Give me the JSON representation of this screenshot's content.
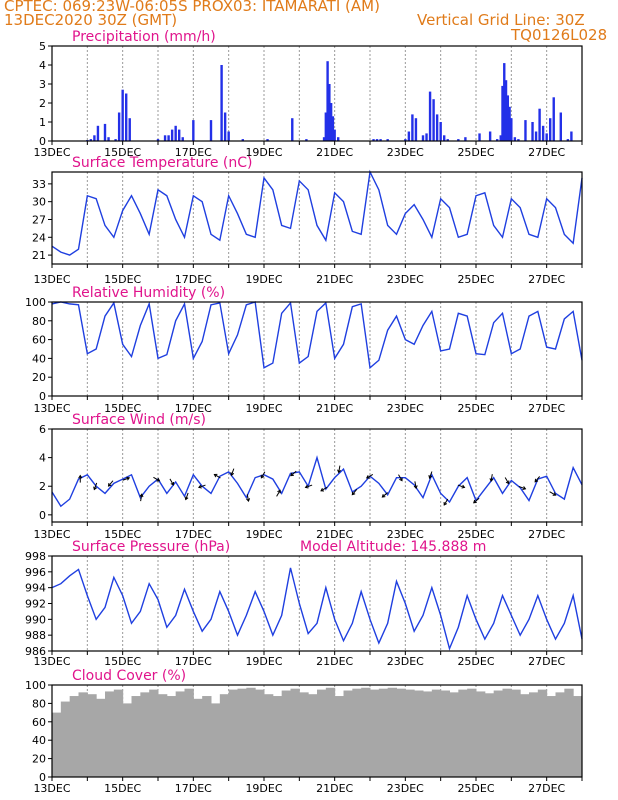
{
  "header": {
    "line1": "CPTEC:   069:23W-06:05S   PROX03: ITAMARATI (AM)",
    "line2_left": "13DEC2020 30Z (GMT)",
    "line2_right": "Vertical Grid Line: 30Z",
    "line3_right": "TQ0126L028"
  },
  "colors": {
    "line": "#1f3fe0",
    "bars": "#2330e8",
    "cloud": "#a7a7a7",
    "title": "#e0148c",
    "header": "#e07b1a"
  },
  "chart_data": [
    {
      "type": "bar",
      "title": "Precipitation (mm/h)",
      "ylim": [
        0,
        5
      ],
      "yticks": [
        0,
        1,
        2,
        3,
        4,
        5
      ],
      "xtick_labels": [
        "13DEC",
        "15DEC",
        "17DEC",
        "19DEC",
        "21DEC",
        "23DEC",
        "25DEC",
        "27DEC"
      ],
      "x_range_days": [
        13,
        28
      ],
      "x": [
        14.0,
        14.1,
        14.2,
        14.3,
        14.5,
        14.6,
        14.8,
        14.9,
        15.0,
        15.1,
        15.2,
        16.0,
        16.2,
        16.3,
        16.4,
        16.5,
        16.6,
        16.7,
        17.0,
        17.5,
        17.8,
        17.9,
        18.0,
        18.4,
        19.1,
        19.8,
        20.2,
        20.7,
        20.75,
        20.8,
        20.85,
        20.9,
        20.95,
        21.0,
        21.1,
        22.1,
        22.2,
        22.3,
        22.5,
        23.0,
        23.1,
        23.2,
        23.3,
        23.5,
        23.6,
        23.7,
        23.8,
        23.9,
        24.0,
        24.1,
        24.2,
        24.5,
        24.7,
        25.1,
        25.4,
        25.6,
        25.7,
        25.75,
        25.8,
        25.85,
        25.9,
        25.95,
        26.0,
        26.1,
        26.2,
        26.4,
        26.6,
        26.7,
        26.8,
        26.9,
        27.0,
        27.1,
        27.2,
        27.4,
        27.6,
        27.7
      ],
      "values": [
        0.05,
        0.1,
        0.3,
        0.8,
        0.9,
        0.2,
        0.1,
        1.5,
        2.7,
        2.5,
        1.2,
        0.1,
        0.3,
        0.3,
        0.6,
        0.8,
        0.6,
        0.2,
        1.1,
        1.1,
        4.0,
        1.5,
        0.5,
        0.1,
        0.1,
        1.2,
        0.1,
        0.2,
        1.5,
        4.2,
        3.0,
        2.0,
        1.3,
        0.6,
        0.2,
        0.1,
        0.1,
        0.1,
        0.1,
        0.1,
        0.5,
        1.4,
        1.2,
        0.3,
        0.4,
        2.6,
        2.2,
        1.4,
        1.0,
        0.3,
        0.1,
        0.1,
        0.2,
        0.4,
        0.5,
        0.1,
        0.3,
        2.9,
        4.1,
        3.2,
        2.4,
        1.8,
        1.2,
        0.2,
        0.1,
        1.1,
        1.0,
        0.5,
        1.7,
        0.8,
        0.4,
        1.2,
        2.3,
        1.5,
        0.1,
        0.5
      ]
    },
    {
      "type": "line",
      "title": "Surface Temperature (nC)",
      "ylim": [
        19.5,
        35
      ],
      "yticks": [
        21,
        24,
        27,
        30,
        33
      ],
      "xtick_labels": [
        "13DEC",
        "15DEC",
        "17DEC",
        "19DEC",
        "21DEC",
        "23DEC",
        "25DEC",
        "27DEC"
      ],
      "x_range_days": [
        13,
        28
      ],
      "x": [
        13.0,
        13.25,
        13.5,
        13.75,
        14.0,
        14.25,
        14.5,
        14.75,
        15.0,
        15.25,
        15.5,
        15.75,
        16.0,
        16.25,
        16.5,
        16.75,
        17.0,
        17.25,
        17.5,
        17.75,
        18.0,
        18.25,
        18.5,
        18.75,
        19.0,
        19.25,
        19.5,
        19.75,
        20.0,
        20.25,
        20.5,
        20.75,
        21.0,
        21.25,
        21.5,
        21.75,
        22.0,
        22.25,
        22.5,
        22.75,
        23.0,
        23.25,
        23.5,
        23.75,
        24.0,
        24.25,
        24.5,
        24.75,
        25.0,
        25.25,
        25.5,
        25.75,
        26.0,
        26.25,
        26.5,
        26.75,
        27.0,
        27.25,
        27.5,
        27.75,
        28.0
      ],
      "values": [
        22.5,
        21.5,
        21.0,
        22.0,
        31.0,
        30.5,
        26.0,
        24.0,
        28.5,
        31.0,
        28.0,
        24.5,
        32.0,
        31.0,
        27.0,
        24.0,
        31.0,
        30.0,
        24.5,
        23.5,
        31.0,
        28.0,
        24.5,
        24.0,
        34.0,
        32.0,
        26.0,
        25.5,
        33.5,
        32.0,
        26.0,
        23.5,
        31.5,
        30.0,
        25.0,
        24.5,
        35.0,
        32.0,
        26.0,
        24.5,
        28.0,
        29.5,
        27.0,
        24.0,
        30.5,
        29.0,
        24.0,
        24.5,
        31.0,
        31.5,
        26.0,
        24.0,
        30.5,
        29.0,
        24.5,
        24.0,
        30.5,
        29.0,
        24.5,
        23.0,
        34.0
      ]
    },
    {
      "type": "line",
      "title": "Relative Humidity (%)",
      "ylim": [
        0,
        100
      ],
      "yticks": [
        0,
        20,
        40,
        60,
        80,
        100
      ],
      "xtick_labels": [
        "13DEC",
        "15DEC",
        "17DEC",
        "19DEC",
        "21DEC",
        "23DEC",
        "25DEC",
        "27DEC"
      ],
      "x_range_days": [
        13,
        28
      ],
      "x": [
        13.0,
        13.25,
        13.5,
        13.75,
        14.0,
        14.25,
        14.5,
        14.75,
        15.0,
        15.25,
        15.5,
        15.75,
        16.0,
        16.25,
        16.5,
        16.75,
        17.0,
        17.25,
        17.5,
        17.75,
        18.0,
        18.25,
        18.5,
        18.75,
        19.0,
        19.25,
        19.5,
        19.75,
        20.0,
        20.25,
        20.5,
        20.75,
        21.0,
        21.25,
        21.5,
        21.75,
        22.0,
        22.25,
        22.5,
        22.75,
        23.0,
        23.25,
        23.5,
        23.75,
        24.0,
        24.25,
        24.5,
        24.75,
        25.0,
        25.25,
        25.5,
        25.75,
        26.0,
        26.25,
        26.5,
        26.75,
        27.0,
        27.25,
        27.5,
        27.75,
        28.0
      ],
      "values": [
        98,
        100,
        98,
        97,
        45,
        50,
        85,
        99,
        55,
        42,
        75,
        98,
        40,
        44,
        80,
        98,
        40,
        58,
        97,
        99,
        45,
        65,
        97,
        100,
        30,
        35,
        88,
        99,
        35,
        42,
        90,
        99,
        40,
        55,
        95,
        98,
        30,
        38,
        70,
        85,
        60,
        55,
        75,
        90,
        48,
        50,
        88,
        85,
        45,
        44,
        78,
        88,
        45,
        50,
        85,
        90,
        52,
        50,
        82,
        90,
        38
      ]
    },
    {
      "type": "line",
      "title": "Surface Wind (m/s)",
      "ylim": [
        -0.5,
        6
      ],
      "yticks": [
        0,
        2,
        4,
        6
      ],
      "xtick_labels": [
        "13DEC",
        "15DEC",
        "17DEC",
        "19DEC",
        "21DEC",
        "23DEC",
        "25DEC",
        "27DEC"
      ],
      "x_range_days": [
        13,
        28
      ],
      "x": [
        13.0,
        13.25,
        13.5,
        13.75,
        14.0,
        14.25,
        14.5,
        14.75,
        15.0,
        15.25,
        15.5,
        15.75,
        16.0,
        16.25,
        16.5,
        16.75,
        17.0,
        17.25,
        17.5,
        17.75,
        18.0,
        18.25,
        18.5,
        18.75,
        19.0,
        19.25,
        19.5,
        19.75,
        20.0,
        20.25,
        20.5,
        20.75,
        21.0,
        21.25,
        21.5,
        21.75,
        22.0,
        22.25,
        22.5,
        22.75,
        23.0,
        23.25,
        23.5,
        23.75,
        24.0,
        24.25,
        24.5,
        24.75,
        25.0,
        25.25,
        25.5,
        25.75,
        26.0,
        26.25,
        26.5,
        26.75,
        27.0,
        27.25,
        27.5,
        27.75,
        28.0
      ],
      "values": [
        1.6,
        0.6,
        1.1,
        2.5,
        2.8,
        2.0,
        1.5,
        2.2,
        2.5,
        2.8,
        1.2,
        2.0,
        2.5,
        1.5,
        2.3,
        1.3,
        2.8,
        2.0,
        1.5,
        2.7,
        3.0,
        2.2,
        1.2,
        2.6,
        2.8,
        2.5,
        1.5,
        2.9,
        3.0,
        2.0,
        4.0,
        1.8,
        2.6,
        3.2,
        1.6,
        2.0,
        2.7,
        2.2,
        1.4,
        2.6,
        2.6,
        2.1,
        1.2,
        2.8,
        1.5,
        0.9,
        2.0,
        2.6,
        1.0,
        1.8,
        2.6,
        1.5,
        2.4,
        1.9,
        1.0,
        2.5,
        2.7,
        1.5,
        1.1,
        3.3,
        2.1
      ],
      "arrow_dirs_deg": [
        90,
        250,
        230,
        20,
        80,
        330,
        300,
        250,
        200,
        150,
        250,
        280,
        240,
        60,
        220,
        200,
        210,
        260,
        230,
        210,
        220,
        300,
        280,
        250,
        240,
        340,
        220,
        260,
        300,
        340,
        230,
        330
      ]
    },
    {
      "type": "line",
      "title": "Surface Pressure (hPa)",
      "annotation": "Model Altitude: 145.888  m",
      "ylim": [
        986,
        998
      ],
      "yticks": [
        986,
        988,
        990,
        992,
        994,
        996,
        998
      ],
      "xtick_labels": [
        "13DEC",
        "15DEC",
        "17DEC",
        "19DEC",
        "21DEC",
        "23DEC",
        "25DEC",
        "27DEC"
      ],
      "x_range_days": [
        13,
        28
      ],
      "x": [
        13.0,
        13.25,
        13.5,
        13.75,
        14.0,
        14.25,
        14.5,
        14.75,
        15.0,
        15.25,
        15.5,
        15.75,
        16.0,
        16.25,
        16.5,
        16.75,
        17.0,
        17.25,
        17.5,
        17.75,
        18.0,
        18.25,
        18.5,
        18.75,
        19.0,
        19.25,
        19.5,
        19.75,
        20.0,
        20.25,
        20.5,
        20.75,
        21.0,
        21.25,
        21.5,
        21.75,
        22.0,
        22.25,
        22.5,
        22.75,
        23.0,
        23.25,
        23.5,
        23.75,
        24.0,
        24.25,
        24.5,
        24.75,
        25.0,
        25.25,
        25.5,
        25.75,
        26.0,
        26.25,
        26.5,
        26.75,
        27.0,
        27.25,
        27.5,
        27.75,
        28.0
      ],
      "values": [
        994.0,
        994.5,
        995.5,
        996.3,
        993.0,
        990.0,
        991.5,
        995.3,
        993.0,
        989.5,
        991.0,
        994.5,
        992.5,
        989.0,
        990.5,
        993.8,
        991.0,
        988.5,
        990.0,
        993.5,
        991.0,
        988.0,
        990.5,
        993.5,
        991.0,
        988.0,
        990.5,
        996.5,
        992.0,
        988.2,
        989.5,
        994.0,
        990.0,
        987.3,
        989.5,
        993.5,
        990.0,
        987.0,
        989.5,
        994.8,
        992.0,
        988.5,
        990.5,
        994.0,
        990.5,
        986.3,
        989.0,
        993.0,
        990.0,
        987.5,
        989.5,
        993.0,
        990.5,
        988.0,
        990.0,
        993.0,
        990.0,
        987.5,
        989.5,
        993.0,
        987.5
      ]
    },
    {
      "type": "bar",
      "title": "Cloud Cover (%)",
      "ylim": [
        0,
        100
      ],
      "yticks": [
        0,
        20,
        40,
        60,
        80,
        100
      ],
      "xtick_labels": [
        "13DEC",
        "15DEC",
        "17DEC",
        "19DEC",
        "21DEC",
        "23DEC",
        "25DEC",
        "27DEC"
      ],
      "x_range_days": [
        13,
        28
      ],
      "x": [
        13.0,
        13.25,
        13.5,
        13.75,
        14.0,
        14.25,
        14.5,
        14.75,
        15.0,
        15.25,
        15.5,
        15.75,
        16.0,
        16.25,
        16.5,
        16.75,
        17.0,
        17.25,
        17.5,
        17.75,
        18.0,
        18.25,
        18.5,
        18.75,
        19.0,
        19.25,
        19.5,
        19.75,
        20.0,
        20.25,
        20.5,
        20.75,
        21.0,
        21.25,
        21.5,
        21.75,
        22.0,
        22.25,
        22.5,
        22.75,
        23.0,
        23.25,
        23.5,
        23.75,
        24.0,
        24.25,
        24.5,
        24.75,
        25.0,
        25.25,
        25.5,
        25.75,
        26.0,
        26.25,
        26.5,
        26.75,
        27.0,
        27.25,
        27.5,
        27.75
      ],
      "values": [
        70,
        82,
        88,
        92,
        90,
        85,
        93,
        95,
        80,
        88,
        92,
        95,
        90,
        88,
        93,
        96,
        85,
        88,
        80,
        90,
        95,
        96,
        97,
        95,
        90,
        88,
        94,
        96,
        92,
        90,
        95,
        97,
        88,
        94,
        96,
        97,
        95,
        96,
        97,
        96,
        95,
        94,
        93,
        95,
        94,
        92,
        95,
        96,
        93,
        91,
        94,
        96,
        95,
        90,
        92,
        95,
        88,
        92,
        96,
        88
      ]
    }
  ]
}
